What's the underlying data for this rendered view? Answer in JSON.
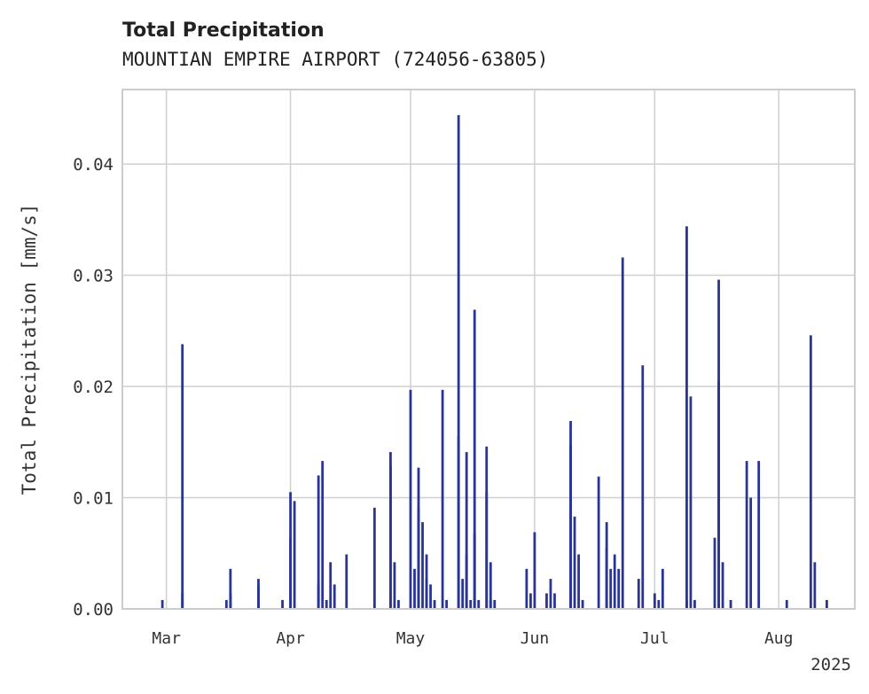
{
  "chart_data": {
    "type": "bar",
    "title": "Total Precipitation",
    "subtitle": "MOUNTIAN EMPIRE AIRPORT (724056-63805)",
    "xlabel": "",
    "ylabel": "Total Precipitation [mm/s]",
    "x_year_label": "2025",
    "x_tick_labels": [
      "Mar",
      "Apr",
      "May",
      "Jun",
      "Jul",
      "Aug"
    ],
    "x_ticks": [
      "2025-03-01",
      "2025-04-01",
      "2025-05-01",
      "2025-06-01",
      "2025-07-01",
      "2025-08-01"
    ],
    "xlim": [
      "2025-02-18",
      "2025-08-20"
    ],
    "y_tick_labels": [
      "0.00",
      "0.01",
      "0.02",
      "0.03",
      "0.04"
    ],
    "y_ticks": [
      0,
      0.01,
      0.02,
      0.03,
      0.04
    ],
    "ylim": [
      0,
      0.0467
    ],
    "grid": true,
    "bar_color": "#2a3593",
    "series": [
      {
        "x": [
          "2025-02-28",
          "2025-03-05",
          "2025-03-05",
          "2025-03-16",
          "2025-03-17",
          "2025-03-17",
          "2025-03-24",
          "2025-03-24",
          "2025-03-30",
          "2025-04-01",
          "2025-04-01",
          "2025-04-02",
          "2025-04-08",
          "2025-04-08",
          "2025-04-09",
          "2025-04-10",
          "2025-04-11",
          "2025-04-12",
          "2025-04-15",
          "2025-04-22",
          "2025-04-26",
          "2025-04-26",
          "2025-04-27",
          "2025-04-28",
          "2025-05-01",
          "2025-05-02",
          "2025-05-03",
          "2025-05-03",
          "2025-05-04",
          "2025-05-05",
          "2025-05-05",
          "2025-05-06",
          "2025-05-07",
          "2025-05-09",
          "2025-05-10",
          "2025-05-13",
          "2025-05-13",
          "2025-05-14",
          "2025-05-15",
          "2025-05-15",
          "2025-05-16",
          "2025-05-17",
          "2025-05-17",
          "2025-05-18",
          "2025-05-20",
          "2025-05-20",
          "2025-05-21",
          "2025-05-21",
          "2025-05-22",
          "2025-05-30",
          "2025-05-31",
          "2025-06-01",
          "2025-06-04",
          "2025-06-05",
          "2025-06-06",
          "2025-06-10",
          "2025-06-10",
          "2025-06-11",
          "2025-06-12",
          "2025-06-13",
          "2025-06-17",
          "2025-06-19",
          "2025-06-19",
          "2025-06-20",
          "2025-06-21",
          "2025-06-22",
          "2025-06-23",
          "2025-06-27",
          "2025-06-28",
          "2025-07-01",
          "2025-07-02",
          "2025-07-03",
          "2025-07-09",
          "2025-07-09",
          "2025-07-10",
          "2025-07-11",
          "2025-07-16",
          "2025-07-17",
          "2025-07-17",
          "2025-07-18",
          "2025-07-20",
          "2025-07-24",
          "2025-07-25",
          "2025-07-27",
          "2025-08-03",
          "2025-08-09",
          "2025-08-10",
          "2025-08-13"
        ],
        "values": [
          0.0008,
          0.0238,
          0.0014,
          0.0008,
          0.0014,
          0.0036,
          0.0021,
          0.0027,
          0.0008,
          0.0064,
          0.0105,
          0.0097,
          0.0022,
          0.012,
          0.0133,
          0.0008,
          0.0042,
          0.0022,
          0.0049,
          0.0091,
          0.0141,
          0.0129,
          0.0042,
          0.0008,
          0.0197,
          0.0036,
          0.0127,
          0.0091,
          0.0078,
          0.0049,
          0.0027,
          0.0022,
          0.0008,
          0.0197,
          0.0008,
          0.0155,
          0.0444,
          0.0027,
          0.0141,
          0.0049,
          0.0008,
          0.0068,
          0.0269,
          0.0008,
          0.0146,
          0.0105,
          0.0042,
          0.0008,
          0.0008,
          0.0036,
          0.0014,
          0.0069,
          0.0014,
          0.0027,
          0.0014,
          0.0169,
          0.0147,
          0.0083,
          0.0049,
          0.0008,
          0.0119,
          0.0078,
          0.0055,
          0.0036,
          0.0049,
          0.0036,
          0.0316,
          0.0027,
          0.0219,
          0.0014,
          0.0008,
          0.0036,
          0.0008,
          0.0344,
          0.0191,
          0.0008,
          0.0064,
          0.0296,
          0.0205,
          0.0042,
          0.0008,
          0.0133,
          0.01,
          0.0133,
          0.0008,
          0.0246,
          0.0042,
          0.0008
        ]
      }
    ]
  }
}
